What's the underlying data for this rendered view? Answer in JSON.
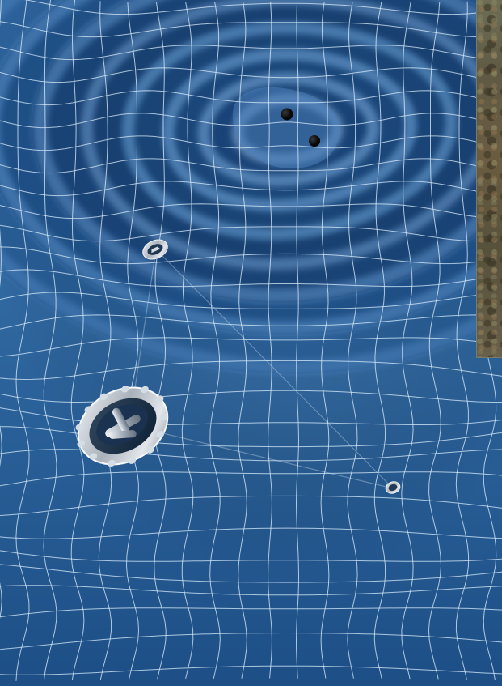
{
  "image": {
    "subject": "gravitational-wave-spacetime-ripples",
    "colors": {
      "background_white": "#ffffff",
      "spacetime_blue": "#2b5f95",
      "spacetime_dark": "#163d68",
      "grid_line": "#cfe3f4",
      "black_hole": "#050505",
      "spacecraft_metal": "#c9cdd3",
      "inset_photo": "#5f5a44"
    },
    "elements": {
      "black_holes": 2,
      "spacecraft": 3,
      "laser_links": 3,
      "inset_photo_visible": true
    }
  }
}
